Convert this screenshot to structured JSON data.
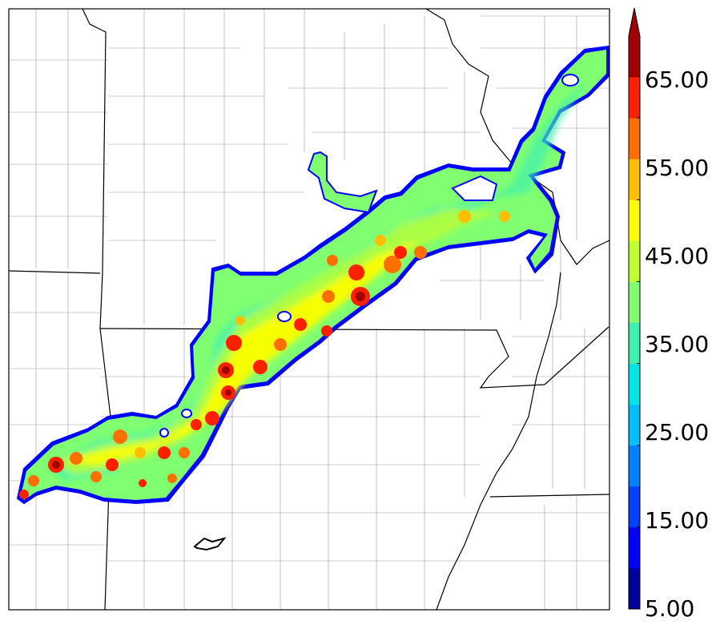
{
  "colorbar": {
    "tick_labels": [
      "5.00",
      "15.00",
      "25.00",
      "35.00",
      "45.00",
      "55.00",
      "65.00"
    ],
    "levels": [
      5,
      10,
      15,
      20,
      25,
      30,
      35,
      40,
      45,
      50,
      55,
      60,
      65,
      70
    ],
    "colors": [
      "#00009f",
      "#0000ff",
      "#0040ff",
      "#0080ff",
      "#00bfff",
      "#00e5e5",
      "#3ff0b0",
      "#80ff70",
      "#c0ff30",
      "#ffff00",
      "#ffbf00",
      "#ff7000",
      "#ff2000",
      "#a00000"
    ],
    "extend": "max"
  }
}
